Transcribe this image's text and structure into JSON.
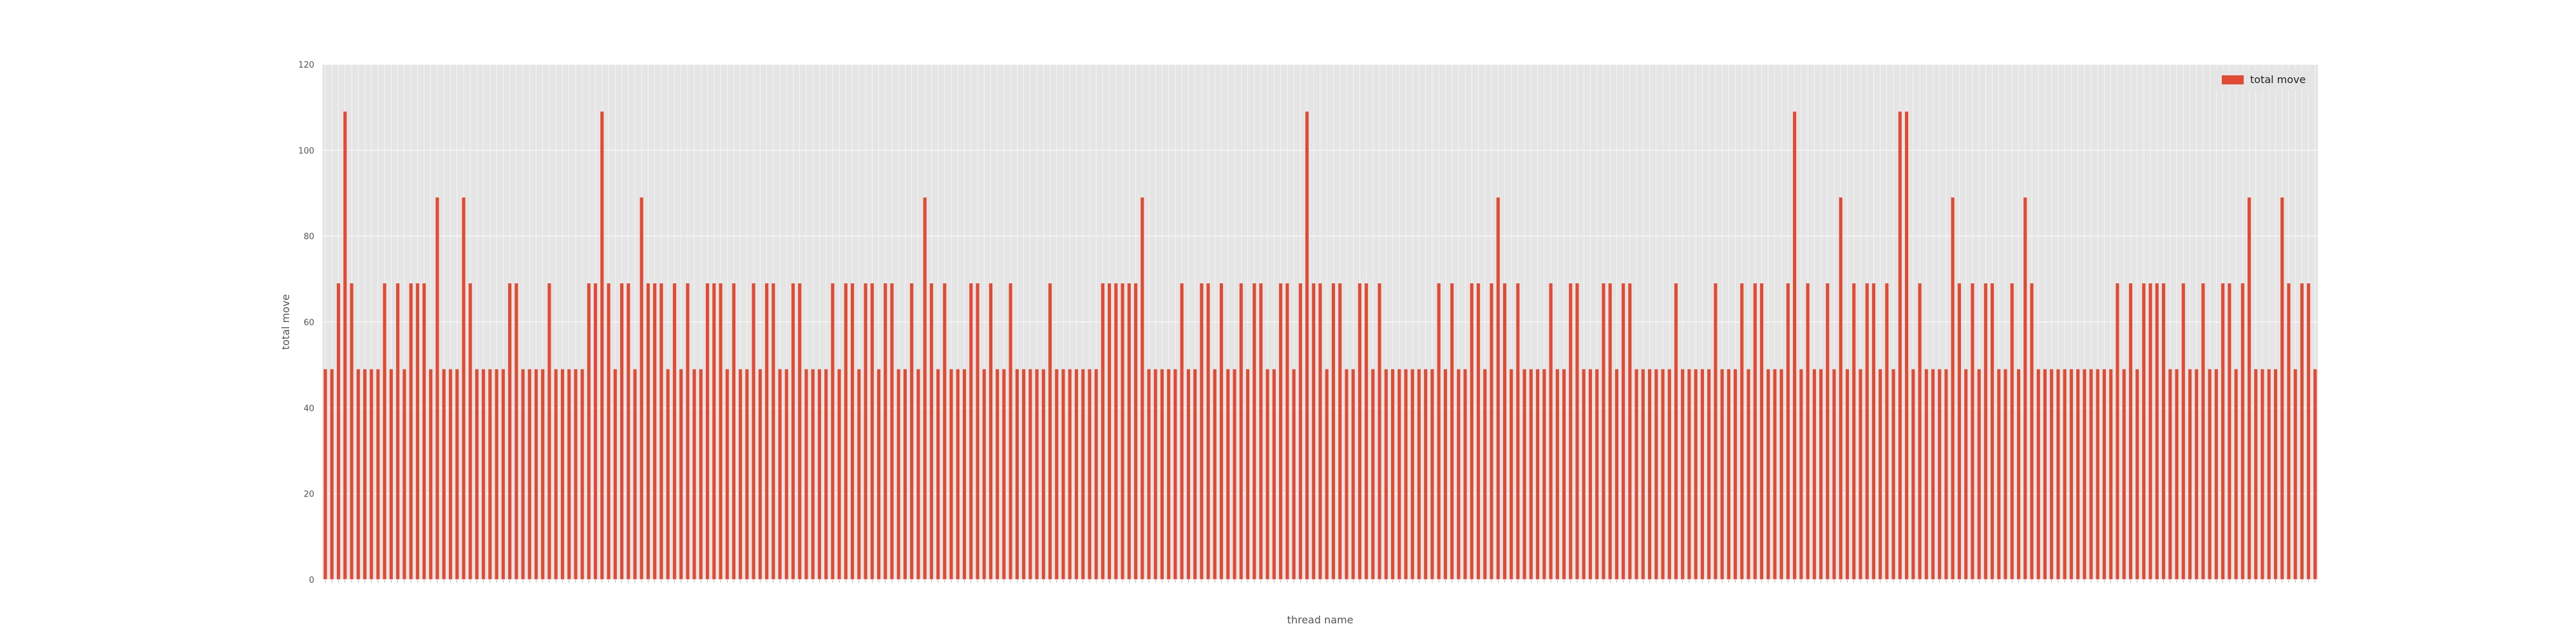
{
  "chart_data": {
    "type": "bar",
    "xlabel": "thread name",
    "ylabel": "total move",
    "ylim": [
      0,
      120
    ],
    "yticks": [
      0,
      20,
      40,
      60,
      80,
      100,
      120
    ],
    "legend": {
      "placement": "top-right"
    },
    "grid": true,
    "colors": {
      "bar": "#e24a33",
      "plot_background": "#e5e5e5",
      "grid": "#ffffff",
      "text": "#555555"
    },
    "series": [
      {
        "name": "total move",
        "values": [
          49,
          49,
          69,
          109,
          69,
          49,
          49,
          49,
          49,
          69,
          49,
          69,
          49,
          69,
          69,
          69,
          49,
          89,
          49,
          49,
          49,
          89,
          69,
          49,
          49,
          49,
          49,
          49,
          69,
          69,
          49,
          49,
          49,
          49,
          69,
          49,
          49,
          49,
          49,
          49,
          69,
          69,
          109,
          69,
          49,
          69,
          69,
          49,
          89,
          69,
          69,
          69,
          49,
          69,
          49,
          69,
          49,
          49,
          69,
          69,
          69,
          49,
          69,
          49,
          49,
          69,
          49,
          69,
          69,
          49,
          49,
          69,
          69,
          49,
          49,
          49,
          49,
          69,
          49,
          69,
          69,
          49,
          69,
          69,
          49,
          69,
          69,
          49,
          49,
          69,
          49,
          89,
          69,
          49,
          69,
          49,
          49,
          49,
          69,
          69,
          49,
          69,
          49,
          49,
          69,
          49,
          49,
          49,
          49,
          49,
          69,
          49,
          49,
          49,
          49,
          49,
          49,
          49,
          69,
          69,
          69,
          69,
          69,
          69,
          89,
          49,
          49,
          49,
          49,
          49,
          69,
          49,
          49,
          69,
          69,
          49,
          69,
          49,
          49,
          69,
          49,
          69,
          69,
          49,
          49,
          69,
          69,
          49,
          69,
          109,
          69,
          69,
          49,
          69,
          69,
          49,
          49,
          69,
          69,
          49,
          69,
          49,
          49,
          49,
          49,
          49,
          49,
          49,
          49,
          69,
          49,
          69,
          49,
          49,
          69,
          69,
          49,
          69,
          89,
          69,
          49,
          69,
          49,
          49,
          49,
          49,
          69,
          49,
          49,
          69,
          69,
          49,
          49,
          49,
          69,
          69,
          49,
          69,
          69,
          49,
          49,
          49,
          49,
          49,
          49,
          69,
          49,
          49,
          49,
          49,
          49,
          69,
          49,
          49,
          49,
          69,
          49,
          69,
          69,
          49,
          49,
          49,
          69,
          109,
          49,
          69,
          49,
          49,
          69,
          49,
          89,
          49,
          69,
          49,
          69,
          69,
          49,
          69,
          49,
          109,
          109,
          49,
          69,
          49,
          49,
          49,
          49,
          89,
          69,
          49,
          69,
          49,
          69,
          69,
          49,
          49,
          69,
          49,
          89,
          69,
          49,
          49,
          49,
          49,
          49,
          49,
          49,
          49,
          49,
          49,
          49,
          49,
          69,
          49,
          69,
          49,
          69,
          69,
          69,
          69,
          49,
          49,
          69,
          49,
          49,
          69,
          49,
          49,
          69,
          69,
          49,
          69,
          89,
          49,
          49,
          49,
          49,
          89,
          69,
          49,
          69,
          69,
          49
        ]
      }
    ]
  }
}
